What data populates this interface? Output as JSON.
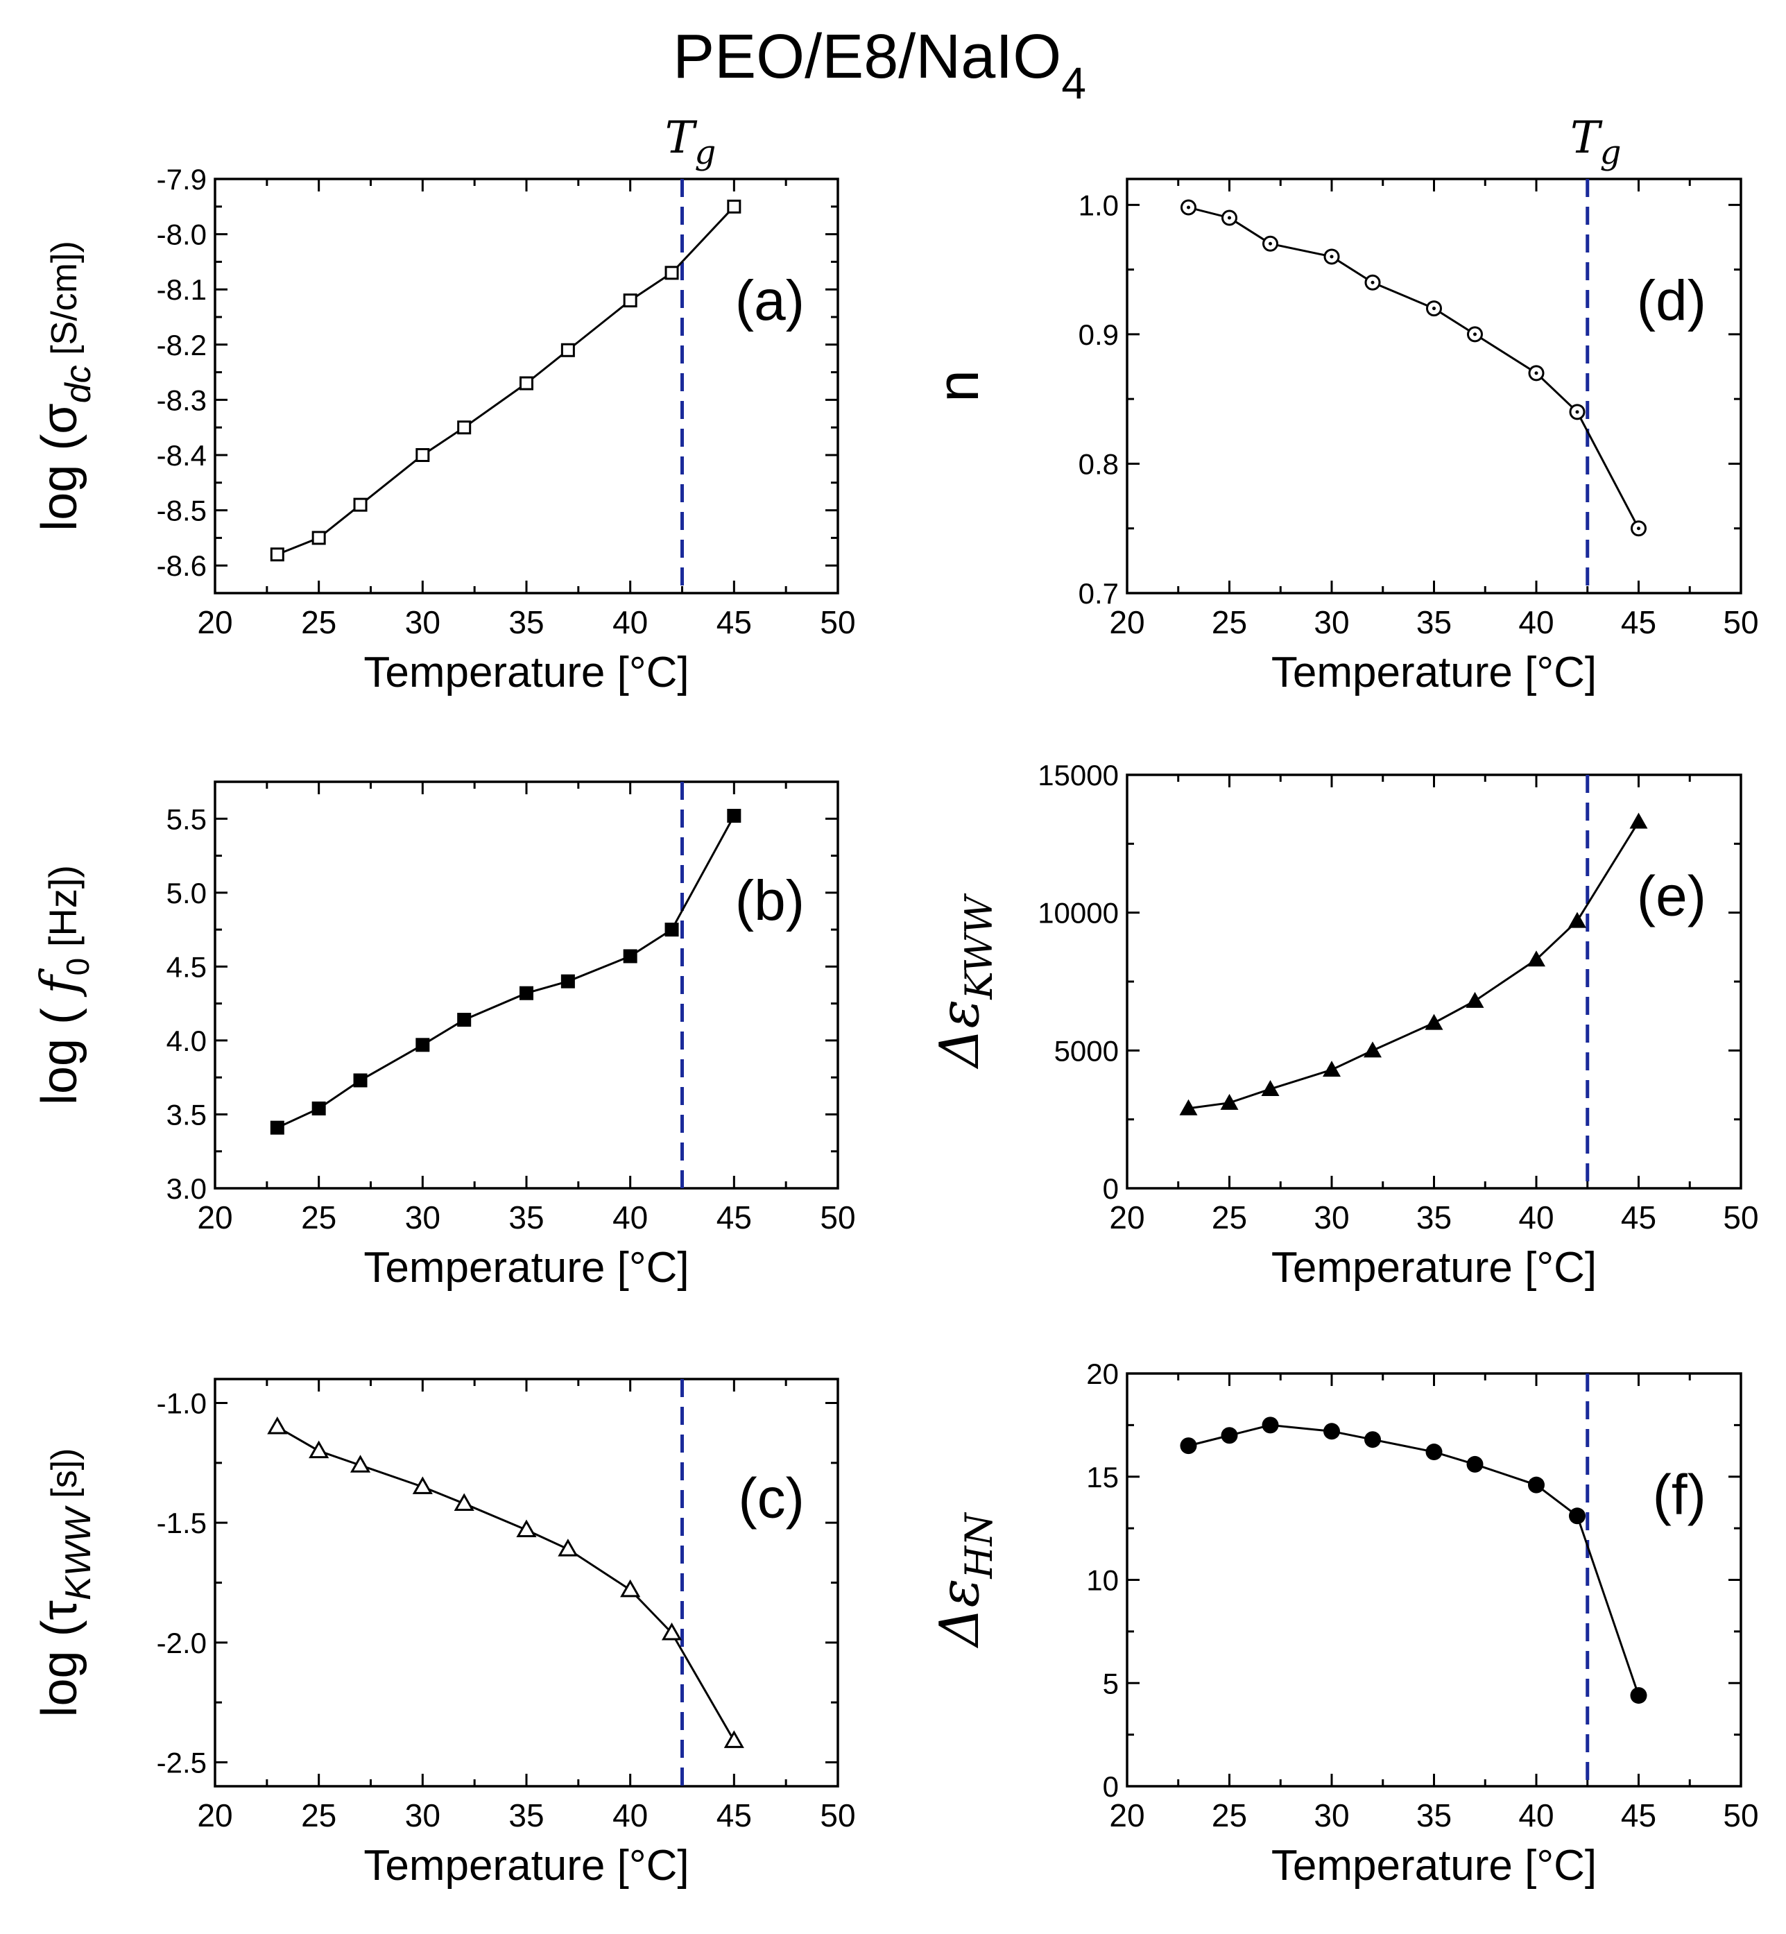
{
  "figure_title": "PEO/E8/NaIO",
  "figure_title_sub": "4",
  "tg_marker": {
    "symbol": "T",
    "sub": "g",
    "temperature": 42.5
  },
  "colors": {
    "axes": "#000000",
    "tg_line": "#1a2a9a",
    "background": "#ffffff"
  },
  "chart_data": [
    {
      "id": "a",
      "type": "line",
      "marker": "open-square",
      "panel_label": "(a)",
      "ylabel_parts": [
        "log (σ",
        "dc",
        " [S/cm])"
      ],
      "xlabel": "Temperature [°C]",
      "xlim": [
        20,
        50
      ],
      "ylim": [
        -8.65,
        -7.9
      ],
      "xticks": [
        20,
        25,
        30,
        35,
        40,
        45,
        50
      ],
      "xtick_labels": [
        "20",
        "25",
        "30",
        "35",
        "40",
        "45",
        "50"
      ],
      "yticks": [
        -8.6,
        -8.5,
        -8.4,
        -8.3,
        -8.2,
        -8.1,
        -8.0,
        -7.9
      ],
      "ytick_labels": [
        "-8.6",
        "-8.5",
        "-8.4",
        "-8.3",
        "-8.2",
        "-8.1",
        "-8.0",
        "-7.9"
      ],
      "x": [
        23,
        25,
        27,
        30,
        32,
        35,
        37,
        40,
        42,
        45
      ],
      "y": [
        -8.58,
        -8.55,
        -8.49,
        -8.4,
        -8.35,
        -8.27,
        -8.21,
        -8.12,
        -8.07,
        -7.95
      ]
    },
    {
      "id": "b",
      "type": "line",
      "marker": "filled-square",
      "panel_label": "(b)",
      "ylabel_parts": [
        "log ( ",
        "f",
        "0",
        " [Hz])"
      ],
      "xlabel": "Temperature [°C]",
      "xlim": [
        20,
        50
      ],
      "ylim": [
        3.0,
        5.75
      ],
      "xticks": [
        20,
        25,
        30,
        35,
        40,
        45,
        50
      ],
      "xtick_labels": [
        "20",
        "25",
        "30",
        "35",
        "40",
        "45",
        "50"
      ],
      "yticks": [
        3.0,
        3.5,
        4.0,
        4.5,
        5.0,
        5.5
      ],
      "ytick_labels": [
        "3.0",
        "3.5",
        "4.0",
        "4.5",
        "5.0",
        "5.5"
      ],
      "x": [
        23,
        25,
        27,
        30,
        32,
        35,
        37,
        40,
        42,
        45
      ],
      "y": [
        3.41,
        3.54,
        3.73,
        3.97,
        4.14,
        4.32,
        4.4,
        4.57,
        4.75,
        5.52
      ]
    },
    {
      "id": "c",
      "type": "line",
      "marker": "open-triangle",
      "panel_label": "(c)",
      "ylabel_parts": [
        "log (τ",
        "KWW",
        " [s])"
      ],
      "xlabel": "Temperature [°C]",
      "xlim": [
        20,
        50
      ],
      "ylim": [
        -2.6,
        -0.9
      ],
      "xticks": [
        20,
        25,
        30,
        35,
        40,
        45,
        50
      ],
      "xtick_labels": [
        "20",
        "25",
        "30",
        "35",
        "40",
        "45",
        "50"
      ],
      "yticks": [
        -2.5,
        -2.0,
        -1.5,
        -1.0
      ],
      "ytick_labels": [
        "-2.5",
        "-2.0",
        "-1.5",
        "-1.0"
      ],
      "x": [
        23,
        25,
        27,
        30,
        32,
        35,
        37,
        40,
        42,
        45
      ],
      "y": [
        -1.1,
        -1.2,
        -1.26,
        -1.35,
        -1.42,
        -1.53,
        -1.61,
        -1.78,
        -1.96,
        -2.41
      ]
    },
    {
      "id": "d",
      "type": "line",
      "marker": "open-circle-dot",
      "panel_label": "(d)",
      "ylabel_parts": [
        "n"
      ],
      "xlabel": "Temperature [°C]",
      "xlim": [
        20,
        50
      ],
      "ylim": [
        0.7,
        1.02
      ],
      "xticks": [
        20,
        25,
        30,
        35,
        40,
        45,
        50
      ],
      "xtick_labels": [
        "20",
        "25",
        "30",
        "35",
        "40",
        "45",
        "50"
      ],
      "yticks": [
        0.7,
        0.8,
        0.9,
        1.0
      ],
      "ytick_labels": [
        "0.7",
        "0.8",
        "0.9",
        "1.0"
      ],
      "x": [
        23,
        25,
        27,
        30,
        32,
        35,
        37,
        40,
        42,
        45
      ],
      "y": [
        0.998,
        0.99,
        0.97,
        0.96,
        0.94,
        0.92,
        0.9,
        0.87,
        0.84,
        0.75
      ]
    },
    {
      "id": "e",
      "type": "line",
      "marker": "filled-triangle",
      "panel_label": "(e)",
      "ylabel_parts": [
        "Δε",
        "KWW"
      ],
      "xlabel": "Temperature [°C]",
      "xlim": [
        20,
        50
      ],
      "ylim": [
        0,
        15000
      ],
      "xticks": [
        20,
        25,
        30,
        35,
        40,
        45,
        50
      ],
      "xtick_labels": [
        "20",
        "25",
        "30",
        "35",
        "40",
        "45",
        "50"
      ],
      "yticks": [
        0,
        5000,
        10000,
        15000
      ],
      "ytick_labels": [
        "0",
        "5000",
        "10000",
        "15000"
      ],
      "x": [
        23,
        25,
        27,
        30,
        32,
        35,
        37,
        40,
        42,
        45
      ],
      "y": [
        2900,
        3100,
        3600,
        4300,
        5000,
        6000,
        6800,
        8300,
        9700,
        13300
      ]
    },
    {
      "id": "f",
      "type": "line",
      "marker": "filled-circle",
      "panel_label": "(f)",
      "ylabel_parts": [
        "Δε",
        "HN"
      ],
      "xlabel": "Temperature [°C]",
      "xlim": [
        20,
        50
      ],
      "ylim": [
        0,
        20
      ],
      "xticks": [
        20,
        25,
        30,
        35,
        40,
        45,
        50
      ],
      "xtick_labels": [
        "20",
        "25",
        "30",
        "35",
        "40",
        "45",
        "50"
      ],
      "yticks": [
        0,
        5,
        10,
        15,
        20
      ],
      "ytick_labels": [
        "0",
        "5",
        "10",
        "15",
        "20"
      ],
      "x": [
        23,
        25,
        27,
        30,
        32,
        35,
        37,
        40,
        42,
        45
      ],
      "y": [
        16.5,
        17.0,
        17.5,
        17.2,
        16.8,
        16.2,
        15.6,
        14.6,
        13.1,
        4.4
      ]
    }
  ]
}
